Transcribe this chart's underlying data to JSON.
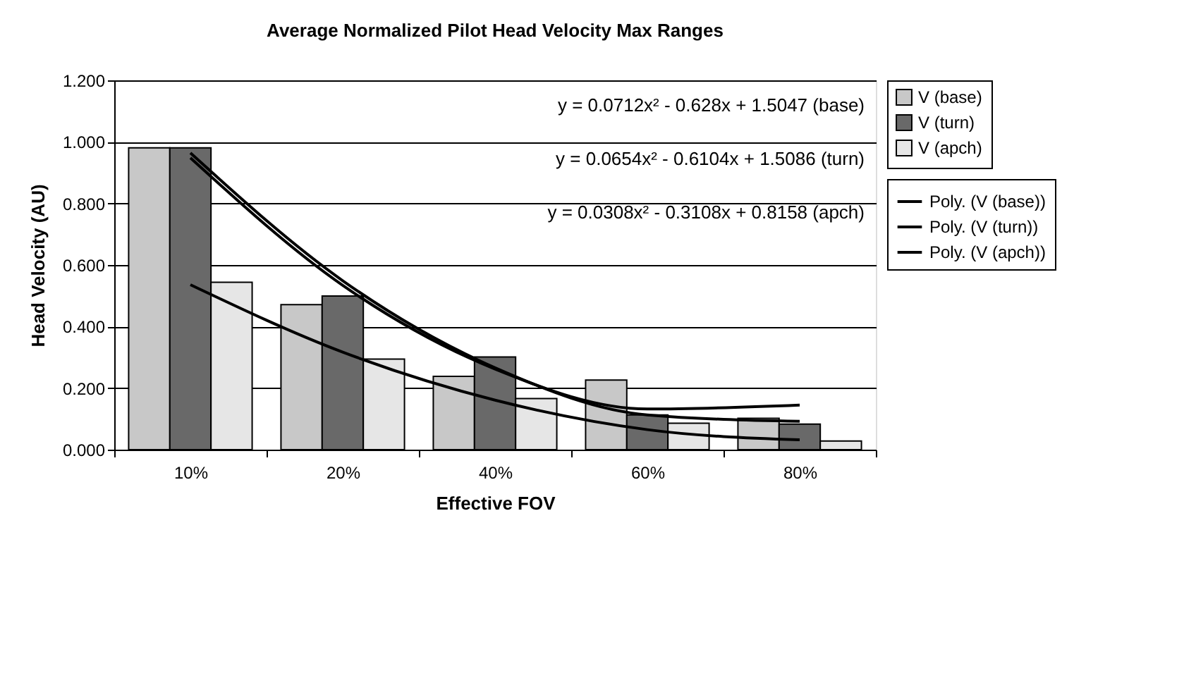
{
  "chart_data": {
    "type": "bar",
    "title": "Average Normalized Pilot Head Velocity Max Ranges",
    "xlabel": "Effective FOV",
    "ylabel": "Head Velocity (AU)",
    "categories": [
      "10%",
      "20%",
      "40%",
      "60%",
      "80%"
    ],
    "series": [
      {
        "name": "V (base)",
        "color": "#c8c8c8",
        "values": [
          0.981,
          0.471,
          0.238,
          0.226,
          0.102
        ]
      },
      {
        "name": "V (turn)",
        "color": "#696969",
        "values": [
          0.981,
          0.499,
          0.301,
          0.113,
          0.083
        ]
      },
      {
        "name": "V (apch)",
        "color": "#e6e6e6",
        "values": [
          0.544,
          0.294,
          0.166,
          0.086,
          0.028
        ]
      },
      {
        "name": "Poly. (V (base))",
        "type": "line",
        "color": "#000000",
        "values": [
          0.948,
          0.534,
          0.262,
          0.132,
          0.145
        ]
      },
      {
        "name": "Poly. (V (turn))",
        "type": "line",
        "color": "#000000",
        "values": [
          0.964,
          0.549,
          0.266,
          0.113,
          0.092
        ]
      },
      {
        "name": "Poly. (V (apch))",
        "type": "line",
        "color": "#000000",
        "values": [
          0.536,
          0.317,
          0.161,
          0.065,
          0.032
        ]
      }
    ],
    "annotations": [
      "y = 0.0712x² - 0.628x + 1.5047  (base)",
      "y = 0.0654x² - 0.6104x + 1.5086  (turn)",
      "y = 0.0308x² - 0.3108x + 0.8158  (apch)"
    ],
    "ylim": [
      0,
      1.2
    ],
    "yticks": [
      {
        "value": 0,
        "label": "0.000"
      },
      {
        "value": 0.2,
        "label": "0.200"
      },
      {
        "value": 0.4,
        "label": "0.400"
      },
      {
        "value": 0.6,
        "label": "0.600"
      },
      {
        "value": 0.8,
        "label": "0.800"
      },
      {
        "value": 1.0,
        "label": "1.000"
      },
      {
        "value": 1.2,
        "label": "1.200"
      }
    ],
    "grid": "y",
    "legend": "right",
    "marker": "none",
    "line_style": "solid"
  }
}
